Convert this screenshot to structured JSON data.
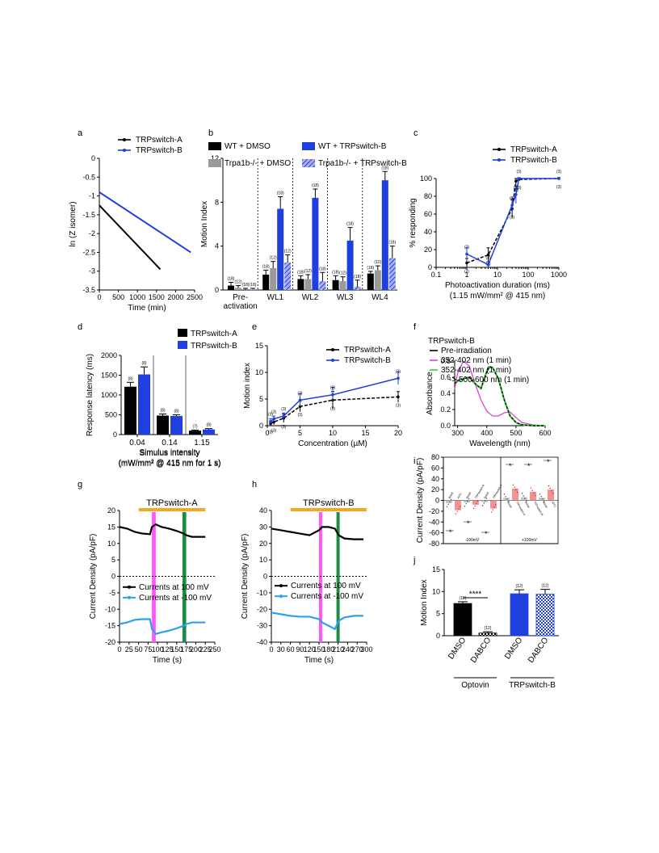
{
  "chart_data": [
    {
      "id": "a",
      "type": "line",
      "panel_label": "a",
      "xlabel": "Time (min)",
      "ylabel": "ln (Z isomer)",
      "xlim": [
        0,
        2500
      ],
      "ylim": [
        -3.5,
        0
      ],
      "xticks": [
        0,
        500,
        1000,
        1500,
        2000,
        2500
      ],
      "yticks": [
        0,
        -0.5,
        -1,
        -1.5,
        -2,
        -2.5,
        -3,
        -3.5
      ],
      "xticklabels": [
        "0",
        "500",
        "1000",
        "1500",
        "2000",
        "2500"
      ],
      "yticklabels": [
        "0",
        "-0.5",
        "-1",
        "-1.5",
        "-2",
        "-2.5",
        "-3",
        "-3.5"
      ],
      "legend": [
        "TRPswitch-A",
        "TRPswitch-B"
      ],
      "series": [
        {
          "name": "TRPswitch-A",
          "color": "#000000",
          "x": [
            0,
            1600
          ],
          "y": [
            -1.25,
            -2.95
          ]
        },
        {
          "name": "TRPswitch-B",
          "color": "#1f3fe0",
          "x": [
            0,
            2400
          ],
          "y": [
            -0.9,
            -2.5
          ]
        }
      ]
    },
    {
      "id": "b",
      "type": "bar",
      "panel_label": "b",
      "ylabel": "Motion Index",
      "ylim": [
        0,
        12
      ],
      "yticks": [
        0,
        4,
        8,
        12
      ],
      "yticklabels": [
        "0",
        "4",
        "8",
        "12"
      ],
      "categories": [
        "Pre-\nactivation",
        "WL1",
        "WL2",
        "WL3",
        "WL4"
      ],
      "category_labels": [
        [
          "Pre-",
          "activation"
        ],
        [
          "WL1"
        ],
        [
          "WL2"
        ],
        [
          "WL3"
        ],
        [
          "WL4"
        ]
      ],
      "legend": [
        "WT + DMSO",
        "WT + TRPswitch-B",
        "Trpa1b-/- + DMSO",
        "Trpa1b-/- + TRPswitch-B"
      ],
      "series": [
        {
          "name": "WT + DMSO",
          "color": "#000000",
          "values": [
            0.4,
            1.4,
            1.0,
            0.9,
            1.5
          ],
          "errors": [
            0.3,
            0.4,
            0.3,
            0.4,
            0.2
          ],
          "n": [
            "(18)",
            "(18)",
            "(18)",
            "(18)",
            "(18)"
          ]
        },
        {
          "name": "Trpa1b-/- + DMSO",
          "color": "#9a9a9a",
          "values": [
            0.2,
            2.0,
            1.0,
            0.8,
            1.8
          ],
          "errors": [
            0.2,
            0.6,
            0.4,
            0.4,
            0.4
          ],
          "n": [
            "(12)",
            "(12)",
            "(12)",
            "(12)",
            "(12)"
          ]
        },
        {
          "name": "WT + TRPswitch-B",
          "color": "#1f3fe0",
          "values": [
            0.05,
            7.4,
            8.4,
            4.5,
            10.0
          ],
          "errors": [
            0.1,
            1.1,
            0.8,
            1.2,
            0.8
          ],
          "n": [
            "(18)",
            "(18)",
            "(18)",
            "(18)",
            "(18)"
          ]
        },
        {
          "name": "Trpa1b-/- + TRPswitch-B",
          "color": "#7a82e8",
          "hatched": true,
          "values": [
            0.05,
            2.5,
            0.8,
            0.3,
            2.9
          ],
          "errors": [
            0.1,
            0.7,
            0.8,
            0.6,
            1.1
          ],
          "n": [
            "(18)",
            "(12)",
            "(18)",
            "(18)",
            "(18)"
          ]
        }
      ]
    },
    {
      "id": "c",
      "type": "line",
      "panel_label": "c",
      "xlabel": "Photoactivation duration (ms)",
      "xlabel2": "(1.15 mW/mm² @ 415 nm)",
      "ylabel": "% responding",
      "xscale": "log",
      "xlim": [
        0.1,
        1000
      ],
      "ylim": [
        0,
        100
      ],
      "xticks": [
        0.1,
        1,
        10,
        100,
        1000
      ],
      "xticklabels": [
        "0.1",
        "1",
        "10",
        "100",
        "1000"
      ],
      "yticks": [
        0,
        20,
        40,
        60,
        80,
        100
      ],
      "yticklabels": [
        "0",
        "20",
        "40",
        "60",
        "80",
        "100"
      ],
      "legend": [
        "TRPswitch-A",
        "TRPswitch-B"
      ],
      "series": [
        {
          "name": "TRPswitch-A",
          "color": "#000000",
          "dashed": true,
          "x": [
            1,
            5,
            30,
            40,
            50,
            1000
          ],
          "y": [
            5,
            14,
            66,
            97,
            99,
            100
          ],
          "errors": [
            5,
            8,
            10,
            3,
            1,
            1
          ],
          "n": [
            "(2)",
            "(3)",
            "(3)",
            "(3)",
            "(3)",
            "(3)"
          ]
        },
        {
          "name": "TRPswitch-B",
          "color": "#1f3fe0",
          "x": [
            1,
            5,
            30,
            40,
            50,
            1000
          ],
          "y": [
            15,
            3,
            70,
            82,
            100,
            100
          ],
          "errors": [
            7,
            3,
            8,
            10,
            1,
            1
          ],
          "n": [
            "(3)",
            "(3)",
            "(3)",
            "(3)",
            "(3)",
            "(3)"
          ]
        }
      ]
    },
    {
      "id": "d",
      "type": "bar",
      "panel_label": "d",
      "ylabel": "Response latency (ms)",
      "xlabel": "Simulus intensity",
      "xlabel2": "(mW/mm² @ 415 nm for 1 s)",
      "ylim": [
        0,
        2000
      ],
      "yticks": [
        0,
        500,
        1000,
        1500,
        2000
      ],
      "yticklabels": [
        "0",
        "500",
        "1000",
        "1500",
        "2000"
      ],
      "categories": [
        "0.04",
        "0.14",
        "1.15"
      ],
      "legend": [
        "TRPswitch-A",
        "TRPswitch-B"
      ],
      "series": [
        {
          "name": "TRPswitch-A",
          "color": "#000000",
          "values": [
            1210,
            480,
            100
          ],
          "errors": [
            110,
            40,
            15
          ],
          "n": [
            "(8)",
            "(8)",
            "(7)"
          ]
        },
        {
          "name": "TRPswitch-B",
          "color": "#1f3fe0",
          "values": [
            1520,
            470,
            130
          ],
          "errors": [
            190,
            30,
            20
          ],
          "n": [
            "(8)",
            "(8)",
            "(8)"
          ]
        }
      ]
    },
    {
      "id": "e",
      "type": "line",
      "panel_label": "e",
      "xlabel": "Concentration (µM)",
      "ylabel": "Motion index",
      "xlim": [
        0,
        20
      ],
      "ylim": [
        0,
        15
      ],
      "xticks": [
        0,
        5,
        10,
        15,
        20
      ],
      "xticklabels": [
        "0",
        "5",
        "10",
        "15",
        "20"
      ],
      "yticks": [
        0,
        5,
        10,
        15
      ],
      "yticklabels": [
        "0",
        "5",
        "10",
        "15"
      ],
      "legend": [
        "TRPswitch-A",
        "TRPswitch-B"
      ],
      "series": [
        {
          "name": "TRPswitch-A",
          "color": "#000000",
          "dashed": true,
          "x": [
            0.5,
            1,
            2.5,
            5,
            10,
            20
          ],
          "y": [
            0.4,
            0.7,
            1.4,
            3.6,
            4.8,
            5.4
          ],
          "errors": [
            0.4,
            0.5,
            0.8,
            1.0,
            1.6,
            1.0
          ],
          "n": [
            "(3)",
            "(3)",
            "(3)",
            "(3)",
            "(3)",
            "(3)"
          ]
        },
        {
          "name": "TRPswitch-B",
          "color": "#1f3fe0",
          "x": [
            0.5,
            1,
            2.5,
            5,
            10,
            20
          ],
          "y": [
            0.8,
            1.3,
            1.8,
            4.8,
            5.8,
            8.9
          ],
          "errors": [
            0.5,
            0.5,
            0.6,
            1.2,
            1.4,
            1.2
          ],
          "n": [
            "(3)",
            "(3)",
            "(3)",
            "(3)",
            "(3)",
            "(3)"
          ]
        }
      ]
    },
    {
      "id": "f",
      "type": "line",
      "panel_label": "f",
      "title": "TRPswitch-B",
      "xlabel": "Wavelength (nm)",
      "ylabel": "Absorbance",
      "xlim": [
        290,
        600
      ],
      "ylim": [
        0,
        0.8
      ],
      "xticks": [
        300,
        400,
        500,
        600
      ],
      "xticklabels": [
        "300",
        "400",
        "500",
        "600"
      ],
      "yticks": [
        0,
        0.2,
        0.4,
        0.6,
        0.8
      ],
      "yticklabels": [
        "0.0",
        "0.2",
        "0.4",
        "0.6",
        "0.8"
      ],
      "legend": [
        "Pre-irradiation",
        "352-402 nm (1 min)",
        "352-402 nm (1 min)"
      ],
      "legend_extra": "-> 500-600 nm (1 min)",
      "series": [
        {
          "name": "Pre-irradiation",
          "color": "#000000",
          "dashed": true,
          "x": [
            290,
            300,
            320,
            340,
            360,
            380,
            400,
            410,
            420,
            440,
            460,
            480,
            500,
            520,
            560,
            600
          ],
          "y": [
            0.52,
            0.56,
            0.58,
            0.6,
            0.52,
            0.46,
            0.67,
            0.73,
            0.72,
            0.58,
            0.32,
            0.12,
            0.04,
            0.01,
            0.0,
            0.0
          ]
        },
        {
          "name": "352-402 nm (1 min)",
          "color": "#e040e0",
          "x": [
            290,
            300,
            320,
            340,
            360,
            380,
            400,
            420,
            440,
            460,
            480,
            500,
            520,
            560,
            600
          ],
          "y": [
            0.45,
            0.65,
            0.8,
            0.74,
            0.52,
            0.32,
            0.18,
            0.12,
            0.12,
            0.16,
            0.17,
            0.1,
            0.04,
            0.01,
            0.0
          ]
        },
        {
          "name": "352-402 nm (1 min)",
          "color": "#3ccc3c",
          "x": [
            290,
            300,
            320,
            340,
            360,
            380,
            400,
            410,
            420,
            440,
            460,
            480,
            500,
            520,
            560,
            600
          ],
          "y": [
            0.52,
            0.55,
            0.58,
            0.6,
            0.52,
            0.46,
            0.67,
            0.73,
            0.72,
            0.58,
            0.32,
            0.12,
            0.04,
            0.01,
            0.0,
            0.0
          ]
        }
      ]
    },
    {
      "id": "g",
      "type": "line",
      "panel_label": "g",
      "title": "TRPswitch-A",
      "xlabel": "Time (s)",
      "ylabel": "Current Density (pA/pF)",
      "xlim": [
        0,
        250
      ],
      "ylim": [
        -20,
        20
      ],
      "xticks": [
        0,
        25,
        50,
        75,
        100,
        125,
        150,
        175,
        200,
        225,
        250
      ],
      "xticklabels": [
        "0",
        "25",
        "50",
        "75",
        "100",
        "125",
        "150",
        "175",
        "200",
        "225",
        "250"
      ],
      "yticks": [
        -20,
        -15,
        -10,
        -5,
        0,
        5,
        10,
        15,
        20
      ],
      "yticklabels": [
        "-20",
        "-15",
        "-10",
        "-5",
        "0",
        "5",
        "10",
        "15",
        "20"
      ],
      "legend": [
        "Currents at 100 mV",
        "Currents at -100 mV"
      ],
      "series": [
        {
          "name": "Currents at 100 mV",
          "color": "#000000",
          "x": [
            0,
            20,
            40,
            60,
            80,
            85,
            95,
            110,
            130,
            150,
            168,
            175,
            190,
            210,
            225
          ],
          "y": [
            15,
            14.5,
            13.5,
            13,
            12.8,
            15,
            15.8,
            15.0,
            14.5,
            13.8,
            13.0,
            12.5,
            12.0,
            12.0,
            12.0
          ]
        },
        {
          "name": "Currents at -100 mV",
          "color": "#2aa0ef",
          "x": [
            0,
            20,
            40,
            60,
            80,
            85,
            95,
            110,
            130,
            150,
            168,
            175,
            190,
            210,
            225
          ],
          "y": [
            -14.5,
            -14,
            -13.2,
            -13,
            -13,
            -16,
            -17.5,
            -17,
            -16.5,
            -15.8,
            -15,
            -14.5,
            -14,
            -14,
            -14
          ]
        }
      ]
    },
    {
      "id": "h",
      "type": "line",
      "panel_label": "h",
      "title": "TRPswitch-B",
      "xlabel": "Time (s)",
      "ylabel": "Current Density (pA/pF)",
      "xlim": [
        0,
        300
      ],
      "ylim": [
        -40,
        40
      ],
      "xticks": [
        0,
        30,
        60,
        90,
        120,
        150,
        180,
        210,
        240,
        270,
        300
      ],
      "xticklabels": [
        "0",
        "30",
        "60",
        "90",
        "120",
        "150",
        "180",
        "210",
        "240",
        "270",
        "300"
      ],
      "yticks": [
        -40,
        -30,
        -20,
        -10,
        0,
        10,
        20,
        30,
        40
      ],
      "yticklabels": [
        "-40",
        "-30",
        "-20",
        "-10",
        "0",
        "10",
        "20",
        "30",
        "40"
      ],
      "legend": [
        "Currents at 100 mV",
        "Currents at -100 mV"
      ],
      "series": [
        {
          "name": "Currents at 100 mV",
          "color": "#000000",
          "x": [
            0,
            30,
            60,
            90,
            120,
            150,
            160,
            180,
            200,
            212,
            230,
            260,
            290
          ],
          "y": [
            29,
            28,
            27,
            26,
            25,
            28,
            30,
            30,
            29,
            25,
            23,
            22.5,
            22.5
          ]
        },
        {
          "name": "Currents at -100 mV",
          "color": "#2aa0ef",
          "x": [
            0,
            30,
            60,
            90,
            120,
            150,
            160,
            180,
            200,
            212,
            230,
            260,
            290
          ],
          "y": [
            -22,
            -23,
            -24,
            -24.5,
            -24.5,
            -26,
            -28,
            -30,
            -32,
            -27,
            -25,
            -24,
            -24
          ]
        }
      ]
    },
    {
      "id": "i",
      "type": "bar",
      "panel_label": "i",
      "ylabel": "Current Density (pA/pF)",
      "ylim": [
        -80,
        80
      ],
      "yticks": [
        -80,
        -60,
        -40,
        -20,
        0,
        20,
        40,
        60,
        80
      ],
      "yticklabels": [
        "-80",
        "-60",
        "-40",
        "-20",
        "0",
        "20",
        "40",
        "60",
        "80"
      ],
      "groups": [
        "-100mV",
        "+100mV"
      ],
      "categories_left": [
        "Basal",
        "AITC",
        "Basal",
        "TRPswitch-B",
        "Basal",
        "TRPswitch-A"
      ],
      "categories_right": [
        "Basal",
        "TRPswitch-A",
        "Basal",
        "TRPswitch-B",
        "Basal",
        "AITC"
      ],
      "values_left": [
        -5,
        -18,
        -4,
        -8,
        -3,
        -15
      ],
      "values_right": [
        5,
        22,
        6,
        16,
        5,
        20
      ],
      "colors": [
        "#bbbbbb",
        "#f08080"
      ],
      "significance": [
        "*",
        "*",
        "*",
        "*",
        "*",
        "*"
      ]
    },
    {
      "id": "j",
      "type": "bar",
      "panel_label": "j",
      "ylabel": "Motion Index",
      "ylim": [
        0,
        15
      ],
      "yticks": [
        0,
        5,
        10,
        15
      ],
      "yticklabels": [
        "0",
        "5",
        "10",
        "15"
      ],
      "categories": [
        "DMSO",
        "DABCO",
        "DMSO",
        "DABCO"
      ],
      "groups": [
        "Optovin",
        "TRPswitch-B"
      ],
      "values": [
        7.3,
        0.6,
        9.5,
        9.4
      ],
      "errors": [
        0.4,
        0.3,
        0.9,
        1.1
      ],
      "n": [
        "(12)",
        "(12)",
        "(12)",
        "(12)"
      ],
      "colors": [
        "#000000",
        "#000000",
        "#1f3fe0",
        "#1f3fe0"
      ],
      "patterns": [
        false,
        true,
        false,
        true
      ],
      "significance": "****"
    }
  ]
}
